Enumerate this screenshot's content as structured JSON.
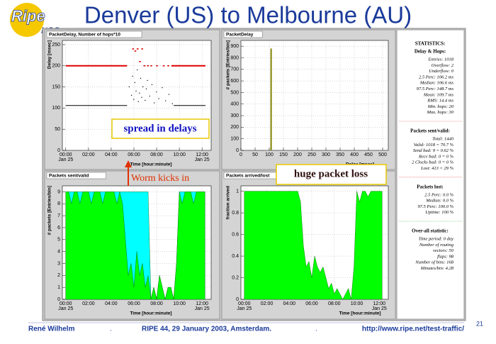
{
  "header": {
    "logo_main": "Ripe",
    "logo_sub": "NCC",
    "title": "Denver (US) to Melbourne (AU)"
  },
  "annotations": {
    "spread": "spread in delays",
    "worm": "Worm kicks in",
    "loss": "huge packet loss"
  },
  "footer": {
    "author": "René Wilhelm",
    "sep": ".",
    "event": "RIPE 44, 29 January 2003, Amsterdam.",
    "url": "http://www.ripe.net/test-traffic/",
    "page": "21"
  },
  "chart_data": [
    {
      "type": "scatter",
      "title": "PacketDelay, Number of hops*10",
      "xlabel": "Time [hour:minute]",
      "ylabel": "Delay [msec]",
      "xlim": [
        -0.3,
        12.8
      ],
      "ylim": [
        0,
        260
      ],
      "xticks": [
        {
          "value": 0,
          "label": "00:00"
        },
        {
          "value": 2,
          "label": "02:00"
        },
        {
          "value": 4,
          "label": "04:00"
        },
        {
          "value": 6,
          "label": "06:00"
        },
        {
          "value": 8,
          "label": "08:00"
        },
        {
          "value": 10,
          "label": "10:00"
        },
        {
          "value": 12,
          "label": "12:00"
        }
      ],
      "x_dates": [
        "Jan 25",
        "Jan 25"
      ],
      "yticks": [
        0,
        50,
        100,
        150,
        200,
        250
      ],
      "grid": true,
      "series": [
        {
          "style": "line",
          "color": "#e00000",
          "x": [
            0,
            5.4,
            5.5,
            9.3,
            12.3
          ],
          "values": [
            200,
            200,
            null,
            200,
            200
          ]
        },
        {
          "style": "line",
          "color": "#000000",
          "x": [
            0,
            5.4,
            5.5,
            9.5,
            12.3
          ],
          "values": [
            106,
            106,
            null,
            106,
            106
          ]
        },
        {
          "style": "points",
          "color": "#000000",
          "x": [
            5.6,
            5.8,
            5.9,
            6.0,
            6.1,
            6.2,
            6.3,
            6.4,
            6.5,
            6.6,
            6.7,
            6.8,
            6.9,
            7.0,
            7.1,
            7.2,
            7.4,
            7.6,
            7.8,
            8.0,
            8.2,
            8.5,
            8.8,
            9.1,
            9.4
          ],
          "values": [
            150,
            130,
            175,
            120,
            160,
            140,
            190,
            115,
            135,
            170,
            125,
            150,
            200,
            118,
            145,
            165,
            128,
            155,
            112,
            138,
            122,
            148,
            117,
            132,
            110
          ]
        },
        {
          "style": "points",
          "color": "#e00000",
          "x": [
            5.9,
            6.1,
            6.3,
            6.5,
            6.7,
            6.9,
            7.2,
            7.5,
            8.0,
            8.6,
            9.0
          ],
          "values": [
            240,
            235,
            240,
            210,
            240,
            200,
            200,
            200,
            200,
            200,
            200
          ]
        }
      ]
    },
    {
      "type": "histogram",
      "title": "PacketDelay",
      "xlabel": "Delay [msec]",
      "ylabel": "# packets [Entries/bin]",
      "xlim": [
        0,
        520
      ],
      "ylim": [
        0,
        950
      ],
      "xticks": [
        0,
        50,
        100,
        150,
        200,
        250,
        300,
        350,
        400,
        450,
        500
      ],
      "yticks": [
        0,
        100,
        200,
        300,
        400,
        500,
        600,
        700,
        800,
        900
      ],
      "grid": true,
      "bins": [
        104,
        109
      ],
      "values": [
        880
      ],
      "color": "#808000"
    },
    {
      "type": "area",
      "title": "Packets sent/valid",
      "xlabel": "Time [hour:minute]",
      "ylabel": "# packets [Entries/bin]",
      "xlim": [
        -0.3,
        12.8
      ],
      "ylim": [
        0,
        9.5
      ],
      "xticks": [
        {
          "value": 0,
          "label": "00:00"
        },
        {
          "value": 2,
          "label": "02:00"
        },
        {
          "value": 4,
          "label": "04:00"
        },
        {
          "value": 6,
          "label": "06:00"
        },
        {
          "value": 8,
          "label": "08:00"
        },
        {
          "value": 10,
          "label": "10:00"
        },
        {
          "value": 12,
          "label": "12:00"
        }
      ],
      "x_dates": [
        "Jan 25",
        "Jan 25"
      ],
      "yticks": [
        0,
        1,
        2,
        3,
        4,
        5,
        6,
        7,
        8,
        9
      ],
      "grid": true,
      "x": [
        0,
        0.25,
        0.5,
        0.75,
        1,
        1.25,
        1.5,
        1.75,
        2,
        2.25,
        2.5,
        2.75,
        3,
        3.25,
        3.5,
        3.75,
        4,
        4.25,
        4.5,
        4.75,
        5,
        5.25,
        5.5,
        5.75,
        6,
        6.25,
        6.5,
        6.75,
        7,
        7.25,
        7.5,
        7.75,
        8,
        8.25,
        8.5,
        8.75,
        9,
        9.25,
        9.5,
        9.75,
        10,
        10.25,
        10.5,
        10.75,
        11,
        11.25,
        11.5,
        11.75,
        12,
        12.25
      ],
      "series": [
        {
          "color": "#00ffff",
          "values": [
            9,
            9,
            9,
            9,
            9,
            9,
            9,
            9,
            9,
            9,
            9,
            9,
            9,
            9,
            9,
            9,
            9,
            9,
            9,
            9,
            9,
            9,
            9,
            9,
            9,
            9,
            9,
            9,
            9,
            9,
            0,
            1,
            0,
            2,
            1,
            0,
            1,
            1,
            0,
            3,
            9,
            9,
            9,
            9,
            9,
            9,
            9,
            9,
            9,
            9
          ]
        },
        {
          "color": "#00ff00",
          "values": [
            9,
            9,
            8,
            9,
            9,
            8,
            9,
            9,
            9,
            8,
            9,
            9,
            9,
            8,
            9,
            9,
            9,
            9,
            8,
            9,
            8,
            5,
            2,
            3,
            1,
            4,
            2,
            3,
            1,
            2,
            0,
            1,
            0,
            2,
            1,
            0,
            1,
            1,
            0,
            3,
            9,
            8,
            9,
            9,
            9,
            8,
            9,
            9,
            9,
            9
          ]
        }
      ]
    },
    {
      "type": "area",
      "title": "Packets arrived/lost",
      "xlabel": "Time [hour:minute]",
      "ylabel": "fraction arrived",
      "xlim": [
        -0.3,
        12.8
      ],
      "ylim": [
        0,
        1.05
      ],
      "xticks": [
        {
          "value": 0,
          "label": "00:00"
        },
        {
          "value": 2,
          "label": "02:00"
        },
        {
          "value": 4,
          "label": "04:00"
        },
        {
          "value": 6,
          "label": "06:00"
        },
        {
          "value": 8,
          "label": "08:00"
        },
        {
          "value": 10,
          "label": "10:00"
        },
        {
          "value": 12,
          "label": "12:00"
        }
      ],
      "x_dates": [
        "Jan 25",
        "Jan 25"
      ],
      "yticks": [
        0,
        0.2,
        0.4,
        0.6,
        0.8,
        1
      ],
      "grid": true,
      "x": [
        0,
        0.25,
        0.5,
        0.75,
        1,
        1.25,
        1.5,
        1.75,
        2,
        2.25,
        2.5,
        2.75,
        3,
        3.25,
        3.5,
        3.75,
        4,
        4.25,
        4.5,
        4.75,
        5,
        5.25,
        5.5,
        5.75,
        6,
        6.25,
        6.5,
        6.75,
        7,
        7.25,
        7.5,
        7.75,
        8,
        8.25,
        8.5,
        8.75,
        9,
        9.25,
        9.5,
        9.75,
        10,
        10.25,
        10.5,
        10.75,
        11,
        11.25,
        11.5,
        11.75,
        12,
        12.25
      ],
      "series": [
        {
          "color": "#00ff00",
          "values": [
            1,
            1,
            1,
            1,
            1,
            1,
            1,
            1,
            1,
            1,
            1,
            1,
            1,
            1,
            1,
            1,
            1,
            1,
            1,
            1,
            0.9,
            0.5,
            0.3,
            0.35,
            0.2,
            0.4,
            0.3,
            0.25,
            0.3,
            0.2,
            0.1,
            0.15,
            0.05,
            0.1,
            0.05,
            0,
            0.05,
            0.1,
            0,
            0.3,
            1,
            0.9,
            1,
            1,
            0.95,
            1,
            1,
            1,
            1,
            1
          ]
        }
      ]
    }
  ],
  "stats": {
    "title": "STATISTICS:",
    "sections": [
      {
        "heading": "Delay & Hops:",
        "lines": [
          "Entries: 1018",
          "Overflow: 2",
          "Underflow: 0",
          "2.5 Perc: 106.2 ms",
          "Median: 106.6 ms",
          "97.5 Perc: 148.7 ms",
          "Mean: 109.7 ms",
          "RMS: 14.4 ms",
          "Min. hops: 20",
          "Max. hops: 30"
        ]
      },
      {
        "heading": "Packets sent/valid:",
        "lines": [
          "Total: 1440",
          "Valid: 1018 = 70.7 %",
          "Send bad: 9 = 0.62 %",
          "Recv bad: 0 = 0 %",
          "2 Clocks bad: 0 = 0 %",
          "Lost: 413 = 29 %"
        ]
      },
      {
        "heading": "Packets lost:",
        "lines": [
          "2.5 Perc: 0.0 %",
          "Median: 0.0 %",
          "97.5 Perc: 100.0 %",
          "Uptime: 100 %"
        ]
      },
      {
        "heading": "Over-all statistic:",
        "lines": [
          "Time period: 0 day",
          "Number of routing",
          "vectors: 50",
          "flaps: 98",
          "Number of bins: 168",
          "Minutes/bin: 4.28"
        ]
      }
    ]
  }
}
